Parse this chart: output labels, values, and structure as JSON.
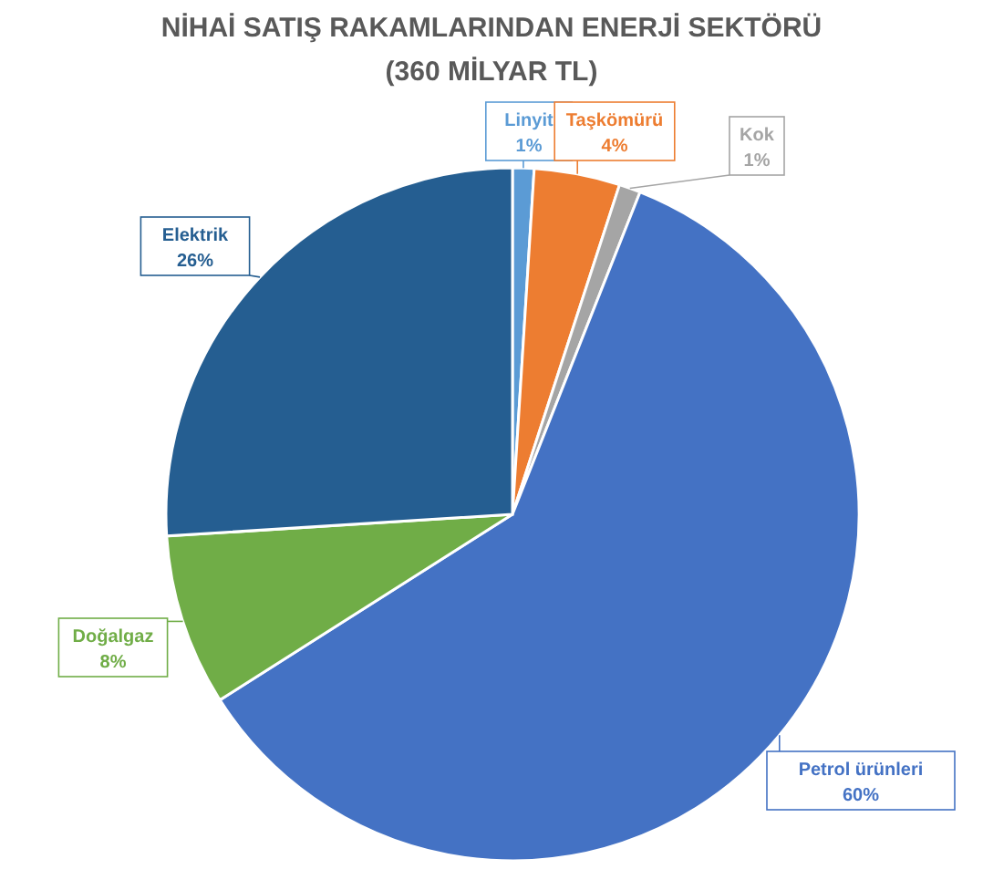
{
  "chart_data": {
    "type": "pie",
    "title": "NİHAİ SATIŞ RAKAMLARINDAN ENERJİ SEKTÖRÜ",
    "subtitle": "(360 MİLYAR TL)",
    "categories": [
      "Linyit",
      "Taşkömürü",
      "Kok",
      "Petrol ürünleri",
      "Doğalgaz",
      "Elektrik"
    ],
    "values": [
      1,
      4,
      1,
      60,
      8,
      26
    ],
    "value_labels": [
      "1%",
      "4%",
      "1%",
      "60%",
      "8%",
      "26%"
    ],
    "colors": [
      "#5b9bd5",
      "#ed7d31",
      "#a5a5a5",
      "#4472c4",
      "#70ad47",
      "#255e91"
    ]
  }
}
